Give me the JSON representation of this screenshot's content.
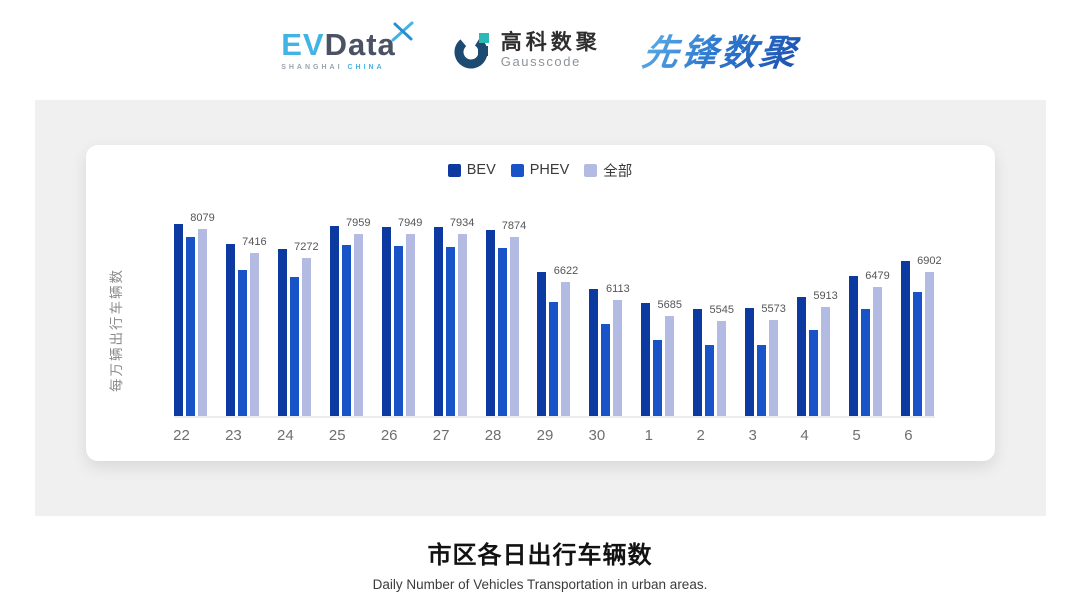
{
  "header": {
    "evdata": {
      "ev": "EV",
      "data": "Data",
      "sub_left": "SHANGHAI",
      "sub_right": "CHINA"
    },
    "gausscode": {
      "cn": "高科数聚",
      "en": "Gausscode"
    },
    "xianfeng": {
      "text": "先锋数聚"
    }
  },
  "chart_data": {
    "type": "bar",
    "title": "市区各日出行车辆数",
    "subtitle": "Daily Number of Vehicles Transportation in urban areas.",
    "ylabel": "每万辆出行车辆数",
    "xlabel": "",
    "legend_position": "top-center",
    "grid": false,
    "categories": [
      "22",
      "23",
      "24",
      "25",
      "26",
      "27",
      "28",
      "29",
      "30",
      "1",
      "2",
      "3",
      "4",
      "5",
      "6"
    ],
    "series": [
      {
        "name": "BEV",
        "color": "#0C3AA0",
        "estimated_from_pixels": true,
        "values": [
          8220,
          7670,
          7540,
          8170,
          8130,
          8130,
          8050,
          6900,
          6420,
          6040,
          5860,
          5900,
          6190,
          6780,
          7210
        ]
      },
      {
        "name": "PHEV",
        "color": "#1953C8",
        "estimated_from_pixels": true,
        "values": [
          7850,
          6960,
          6750,
          7640,
          7620,
          7600,
          7560,
          6050,
          5450,
          5000,
          4880,
          4870,
          5290,
          5880,
          6340
        ]
      },
      {
        "name": "全部",
        "color": "#B3BBE2",
        "labels_shown": true,
        "values": [
          8079,
          7416,
          7272,
          7959,
          7949,
          7934,
          7874,
          6622,
          6113,
          5685,
          5545,
          5573,
          5913,
          6479,
          6902
        ]
      }
    ],
    "data_labels": {
      "series": "全部",
      "values": [
        8079,
        7416,
        7272,
        7959,
        7949,
        7934,
        7874,
        6622,
        6113,
        5685,
        5545,
        5573,
        5913,
        6479,
        6902
      ]
    },
    "ylim_estimated": [
      2900,
      8500
    ]
  },
  "colors": {
    "panel_bg": "#f0f0f0",
    "card_bg": "#ffffff",
    "axis_line": "#ececec",
    "tick_text": "#6e6e6e",
    "value_label_text": "#555555",
    "ylabel_text": "#8a8a8a",
    "legend_text": "#3a3a3a",
    "evdata_blue": "#41b4e6",
    "evdata_dark": "#4a5264",
    "gauss_navy": "#1d4a70",
    "gauss_teal": "#2cb8b4",
    "xianfeng_gradient": [
      "#62b2e9",
      "#1b4fae"
    ]
  }
}
